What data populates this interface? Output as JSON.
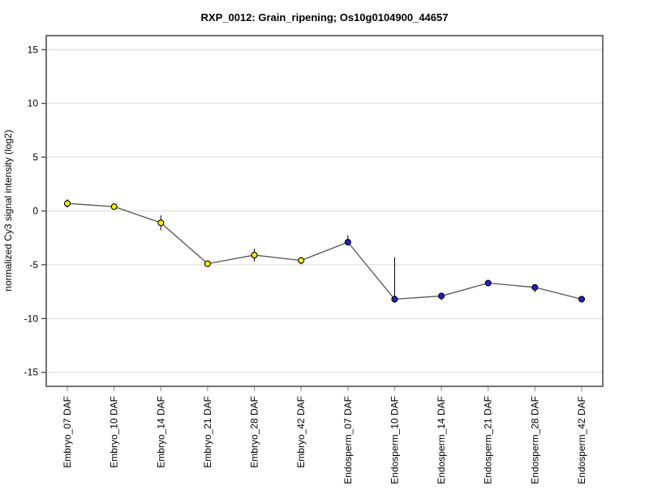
{
  "page": {
    "background": "#ffffff"
  },
  "chart_data": {
    "type": "line",
    "title": "RXP_0012: Grain_ripening; Os10g0104900_44657",
    "ylabel": "normalized  Cy3 signal intensity (log2)",
    "xlabel": "",
    "ylim": [
      -16.3,
      16.3
    ],
    "yticks": [
      15,
      10,
      5,
      0,
      -5,
      -10,
      -15
    ],
    "grid": "horizontal",
    "legend": "none",
    "categories": [
      "Embryo_07 DAF",
      "Embryo_10 DAF",
      "Embryo_14 DAF",
      "Embryo_21 DAF",
      "Embryo_28 DAF",
      "Embryo_42 DAF",
      "Endosperm_07 DAF",
      "Endosperm_10 DAF",
      "Endosperm_14 DAF",
      "Endosperm_21 DAF",
      "Endosperm_28 DAF",
      "Endosperm_42 DAF"
    ],
    "series": [
      {
        "name": "normalized Cy3 signal intensity",
        "values": [
          0.7,
          0.4,
          -1.1,
          -4.9,
          -4.1,
          -4.6,
          -2.9,
          -8.2,
          -7.9,
          -6.7,
          -7.1,
          -8.2
        ],
        "err_up": [
          0.4,
          0.15,
          0.7,
          0.1,
          0.6,
          0.2,
          0.65,
          3.9,
          0.15,
          0.1,
          0.15,
          0.1
        ],
        "err_down": [
          0.4,
          0.15,
          0.7,
          0.1,
          0.6,
          0.35,
          0.3,
          0.35,
          0.4,
          0.25,
          0.45,
          0.1
        ]
      }
    ],
    "groups": [
      {
        "name": "Embryo",
        "marker_color": "#f2f200",
        "indices": [
          0,
          1,
          2,
          3,
          4,
          5
        ]
      },
      {
        "name": "Endosperm",
        "marker_color": "#2222cc",
        "indices": [
          6,
          7,
          8,
          9,
          10,
          11
        ]
      }
    ],
    "point_colors": [
      "#f2f200",
      "#f2f200",
      "#f2f200",
      "#f2f200",
      "#f2f200",
      "#f2f200",
      "#2222cc",
      "#2222cc",
      "#2222cc",
      "#2222cc",
      "#2222cc",
      "#2222cc"
    ],
    "line_color": "#555555",
    "marker_stroke": "#000000",
    "error_bar_color": "#000000",
    "grid_color": "#d9d9d9",
    "frame_color": "#454545",
    "y_tick_color": "#333333",
    "x_tick_color": "#999999"
  }
}
